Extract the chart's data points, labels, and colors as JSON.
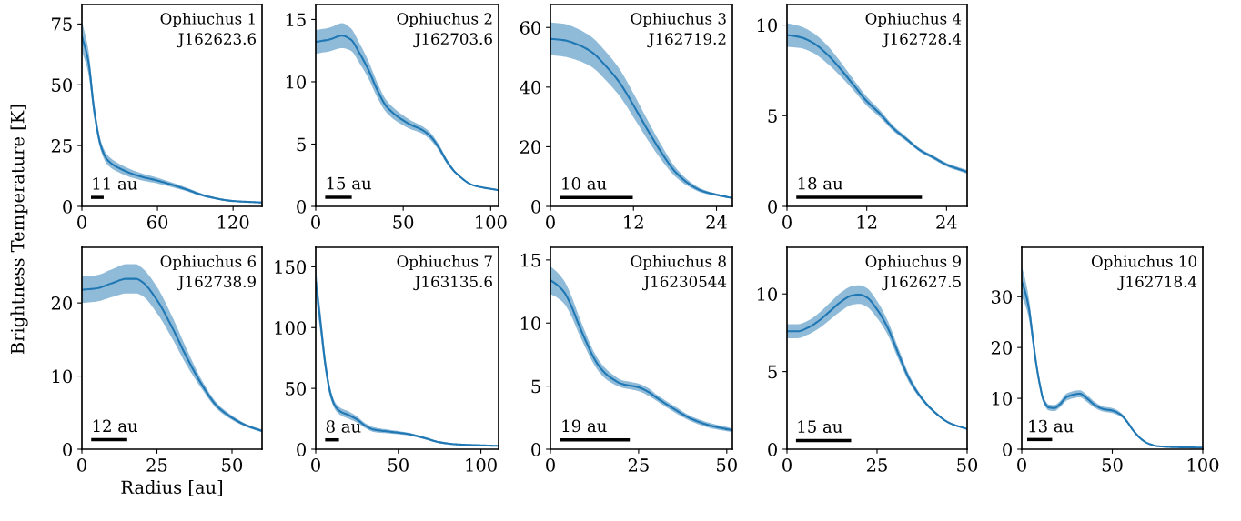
{
  "chart_data": [
    {
      "type": "line",
      "xlim": [
        0,
        143
      ],
      "ylim": [
        0,
        83
      ],
      "xticks": [
        0,
        60,
        120
      ],
      "yticks": [
        0,
        25,
        50,
        75
      ],
      "x": [
        0,
        5,
        10,
        15,
        20,
        30,
        45,
        60,
        80,
        100,
        120,
        143
      ],
      "series": [
        {
          "type": "line",
          "color": "#1f77b4",
          "values": [
            70,
            60,
            38.6,
            25,
            19.3,
            15.6,
            12.5,
            10.6,
            7.5,
            4,
            2.2,
            1.6
          ],
          "lower": [
            64,
            55,
            35.6,
            23,
            17.3,
            13.8,
            11,
            9.4,
            6.7,
            3.5,
            1.9,
            1.4
          ],
          "upper": [
            76,
            65,
            41.6,
            27,
            21.3,
            17.4,
            14,
            11.8,
            8.3,
            4.5,
            2.5,
            1.8
          ]
        },
        {
          "type": "line",
          "color": "#000000",
          "x": [
            7.2,
            17.3
          ],
          "values": [
            3.7,
            3.7
          ]
        }
      ],
      "annotations": [
        "Ophiuchus 1",
        "J162623.6",
        {
          "text": "11 au",
          "x": 7.4,
          "y": 5.5
        }
      ]
    },
    {
      "type": "line",
      "xlim": [
        0,
        104.5
      ],
      "ylim": [
        0,
        16.2
      ],
      "xticks": [
        0,
        50,
        100
      ],
      "yticks": [
        0,
        5,
        10,
        15
      ],
      "x": [
        0,
        8,
        15,
        20,
        25,
        30,
        35,
        40,
        45,
        50,
        55,
        60,
        65,
        70,
        75,
        80,
        90,
        104.5
      ],
      "series": [
        {
          "type": "line",
          "color": "#1f77b4",
          "values": [
            13.2,
            13.4,
            13.7,
            13.4,
            12.3,
            11.0,
            9.4,
            8.1,
            7.4,
            6.9,
            6.5,
            6.2,
            5.7,
            4.8,
            3.6,
            2.7,
            1.7,
            1.3
          ],
          "lower": [
            12.25,
            12.45,
            12.7,
            12.5,
            11.5,
            10.3,
            8.8,
            7.6,
            6.95,
            6.5,
            6.15,
            5.9,
            5.4,
            4.55,
            3.4,
            2.6,
            1.65,
            1.25
          ],
          "upper": [
            14.15,
            14.35,
            14.7,
            14.3,
            13.1,
            11.7,
            10.0,
            8.6,
            7.85,
            7.3,
            6.85,
            6.5,
            6.0,
            5.05,
            3.8,
            2.8,
            1.75,
            1.35
          ]
        },
        {
          "type": "line",
          "color": "#000000",
          "x": [
            5.4,
            20.6
          ],
          "values": [
            0.73,
            0.73
          ]
        }
      ],
      "annotations": [
        "Ophiuchus 2",
        "J162703.6",
        {
          "text": "15 au",
          "x": 5.5,
          "y": 1.1
        }
      ]
    },
    {
      "type": "line",
      "xlim": [
        0,
        26.3
      ],
      "ylim": [
        0,
        67.7
      ],
      "xticks": [
        0,
        12,
        24
      ],
      "yticks": [
        0,
        20,
        40,
        60
      ],
      "x": [
        0,
        2,
        4,
        6,
        8,
        10,
        12,
        14,
        16,
        18,
        20,
        22,
        24,
        26.3
      ],
      "series": [
        {
          "type": "line",
          "color": "#1f77b4",
          "values": [
            56.2,
            55.7,
            54.2,
            51.7,
            47.1,
            41.5,
            33.9,
            25.8,
            18.2,
            11.7,
            7.6,
            5.1,
            3.9,
            2.8
          ],
          "lower": [
            50.7,
            50.2,
            48.9,
            46.7,
            42.3,
            37.0,
            29.9,
            22.5,
            15.7,
            10.1,
            6.6,
            4.5,
            3.5,
            2.5
          ],
          "upper": [
            61.7,
            61.2,
            59.5,
            56.7,
            51.9,
            46.0,
            37.9,
            29.1,
            20.7,
            13.3,
            8.6,
            5.7,
            4.3,
            3.1
          ]
        },
        {
          "type": "line",
          "color": "#000000",
          "x": [
            1.4,
            11.9
          ],
          "values": [
            3.0,
            3.0
          ]
        }
      ],
      "annotations": [
        "Ophiuchus 3",
        "J162719.2",
        {
          "text": "10 au",
          "x": 1.45,
          "y": 4.5
        }
      ]
    },
    {
      "type": "line",
      "xlim": [
        0,
        27.1
      ],
      "ylim": [
        0,
        11.13
      ],
      "xticks": [
        0,
        12,
        24
      ],
      "yticks": [
        0,
        5,
        10
      ],
      "x": [
        0,
        2,
        4,
        6,
        8,
        10,
        12,
        14,
        16,
        18,
        20,
        22,
        24,
        27.1
      ],
      "series": [
        {
          "type": "line",
          "color": "#1f77b4",
          "values": [
            9.45,
            9.33,
            9.0,
            8.4,
            7.6,
            6.7,
            5.8,
            5.1,
            4.3,
            3.7,
            3.1,
            2.7,
            2.3,
            1.9
          ],
          "lower": [
            8.8,
            8.73,
            8.45,
            7.9,
            7.2,
            6.4,
            5.55,
            4.9,
            4.15,
            3.58,
            3.0,
            2.6,
            2.2,
            1.8
          ],
          "upper": [
            10.1,
            9.93,
            9.55,
            8.9,
            8.0,
            7.0,
            6.05,
            5.3,
            4.45,
            3.82,
            3.2,
            2.8,
            2.4,
            2.0
          ]
        },
        {
          "type": "line",
          "color": "#000000",
          "x": [
            1.4,
            20.3
          ],
          "values": [
            0.5,
            0.5
          ]
        }
      ],
      "annotations": [
        "Ophiuchus 4",
        "J162728.4",
        {
          "text": "18 au",
          "x": 1.45,
          "y": 0.75
        }
      ]
    },
    {
      "type": "line",
      "xlabel": "Radius [au]",
      "ylabel": "Brightness Temperature [K]",
      "xlim": [
        0,
        60
      ],
      "ylim": [
        0,
        27.6
      ],
      "xticks": [
        0,
        25,
        50
      ],
      "yticks": [
        0,
        10,
        20
      ],
      "x": [
        0,
        5,
        10,
        15,
        18,
        20,
        25,
        30,
        35,
        40,
        45,
        50,
        55,
        60
      ],
      "series": [
        {
          "type": "line",
          "color": "#1f77b4",
          "values": [
            21.8,
            22.0,
            22.7,
            23.3,
            23.3,
            22.9,
            20.4,
            16.7,
            12.5,
            8.8,
            5.9,
            4.3,
            3.2,
            2.5
          ],
          "lower": [
            20.0,
            20.2,
            20.8,
            21.3,
            21.3,
            21.0,
            18.6,
            15.2,
            11.4,
            8.2,
            5.5,
            4.0,
            3.0,
            2.3
          ],
          "upper": [
            23.6,
            23.8,
            24.6,
            25.3,
            25.3,
            24.8,
            22.2,
            18.2,
            13.6,
            9.4,
            6.3,
            4.6,
            3.4,
            2.7
          ]
        },
        {
          "type": "line",
          "color": "#000000",
          "x": [
            3.1,
            15.1
          ],
          "values": [
            1.3,
            1.3
          ]
        }
      ],
      "annotations": [
        "Ophiuchus 6",
        "J162738.9",
        {
          "text": "12 au",
          "x": 3.2,
          "y": 1.9
        }
      ]
    },
    {
      "type": "line",
      "xlim": [
        0,
        110.7
      ],
      "ylim": [
        0,
        166
      ],
      "xticks": [
        0,
        50,
        100
      ],
      "yticks": [
        0,
        50,
        100,
        150
      ],
      "x": [
        0,
        3,
        6,
        9,
        12,
        15,
        20,
        25,
        30,
        35,
        45,
        55,
        65,
        75,
        85,
        100,
        110.7
      ],
      "series": [
        {
          "type": "line",
          "color": "#1f77b4",
          "values": [
            138,
            103,
            68,
            45.5,
            35,
            31,
            28,
            24.4,
            19.4,
            16.2,
            14.4,
            12.7,
            9.5,
            5.7,
            4,
            3.2,
            2.7
          ],
          "lower": [
            126,
            94,
            62,
            41.5,
            32,
            28,
            25,
            21.9,
            17.4,
            14.2,
            12.9,
            11.5,
            8.5,
            4.9,
            3.4,
            2.7,
            2.2
          ],
          "upper": [
            150,
            112,
            74,
            49.5,
            38,
            34,
            31,
            26.9,
            21.4,
            18.2,
            15.9,
            13.9,
            10.5,
            6.5,
            4.6,
            3.7,
            3.2
          ]
        },
        {
          "type": "line",
          "color": "#000000",
          "x": [
            5.7,
            14.1
          ],
          "values": [
            7.7,
            7.7
          ]
        }
      ],
      "annotations": [
        "Ophiuchus 7",
        "J163135.6",
        {
          "text": "8 au",
          "x": 5.8,
          "y": 11
        }
      ]
    },
    {
      "type": "line",
      "xlim": [
        0,
        51.6
      ],
      "ylim": [
        0,
        16.0
      ],
      "xticks": [
        0,
        25,
        50
      ],
      "yticks": [
        0,
        5,
        10,
        15
      ],
      "x": [
        0,
        2,
        4,
        6,
        8,
        10,
        12,
        14,
        16,
        18,
        20,
        25,
        28,
        30,
        35,
        40,
        45,
        51.6
      ],
      "series": [
        {
          "type": "line",
          "color": "#1f77b4",
          "values": [
            13.4,
            13.0,
            12.4,
            11.3,
            9.9,
            8.6,
            7.4,
            6.5,
            5.9,
            5.5,
            5.2,
            4.9,
            4.5,
            4.1,
            3.2,
            2.4,
            1.9,
            1.5
          ],
          "lower": [
            12.3,
            12.0,
            11.5,
            10.5,
            9.2,
            8.0,
            6.9,
            6.05,
            5.5,
            5.15,
            4.9,
            4.6,
            4.2,
            3.85,
            2.95,
            2.2,
            1.7,
            1.35
          ],
          "upper": [
            14.5,
            14.0,
            13.3,
            12.1,
            10.6,
            9.2,
            7.9,
            6.95,
            6.3,
            5.85,
            5.5,
            5.2,
            4.8,
            4.35,
            3.45,
            2.6,
            2.1,
            1.65
          ]
        },
        {
          "type": "line",
          "color": "#000000",
          "x": [
            2.8,
            22.5
          ],
          "values": [
            0.74,
            0.74
          ]
        }
      ],
      "annotations": [
        "Ophiuchus 8",
        "J16230544",
        {
          "text": "19 au",
          "x": 2.9,
          "y": 1.1
        }
      ]
    },
    {
      "type": "line",
      "xlim": [
        0,
        50
      ],
      "ylim": [
        0,
        13.0
      ],
      "xticks": [
        0,
        25,
        50
      ],
      "yticks": [
        0,
        5,
        10
      ],
      "x": [
        0,
        3,
        6,
        9,
        12,
        15,
        18,
        20,
        22,
        25,
        28,
        31,
        34,
        37,
        40,
        45,
        50
      ],
      "series": [
        {
          "type": "line",
          "color": "#1f77b4",
          "values": [
            7.6,
            7.6,
            7.85,
            8.3,
            8.9,
            9.5,
            9.9,
            9.96,
            9.8,
            9.0,
            7.8,
            6.1,
            4.5,
            3.4,
            2.6,
            1.7,
            1.3
          ],
          "lower": [
            7.15,
            7.15,
            7.4,
            7.8,
            8.35,
            8.9,
            9.3,
            9.36,
            9.2,
            8.45,
            7.35,
            5.75,
            4.25,
            3.25,
            2.5,
            1.65,
            1.25
          ],
          "upper": [
            8.05,
            8.05,
            8.3,
            8.8,
            9.45,
            10.1,
            10.5,
            10.56,
            10.4,
            9.55,
            8.25,
            6.45,
            4.75,
            3.55,
            2.7,
            1.75,
            1.35
          ]
        },
        {
          "type": "line",
          "color": "#000000",
          "x": [
            2.5,
            17.8
          ],
          "values": [
            0.55,
            0.55
          ]
        }
      ],
      "annotations": [
        "Ophiuchus 9",
        "J162627.5",
        {
          "text": "15 au",
          "x": 2.6,
          "y": 0.85
        }
      ]
    },
    {
      "type": "line",
      "xlim": [
        0,
        100
      ],
      "ylim": [
        0,
        39.7
      ],
      "xticks": [
        0,
        50,
        100
      ],
      "yticks": [
        0,
        10,
        20,
        30
      ],
      "x": [
        0,
        2,
        4,
        6,
        8,
        10,
        12,
        15,
        18,
        21,
        25,
        32,
        36,
        40,
        45,
        50,
        55,
        58,
        62,
        66,
        70,
        75,
        85,
        100
      ],
      "series": [
        {
          "type": "line",
          "color": "#1f77b4",
          "values": [
            33,
            30.8,
            27.6,
            22.2,
            16.8,
            12.7,
            9.7,
            8.2,
            8.1,
            8.8,
            10.3,
            10.9,
            10,
            8.8,
            7.9,
            7.6,
            6.7,
            5.5,
            3.5,
            2.0,
            1.1,
            0.6,
            0.4,
            0.3
          ],
          "lower": [
            30,
            28.3,
            25.6,
            20.7,
            15.8,
            11.9,
            9.1,
            7.6,
            7.5,
            8.2,
            9.6,
            10.2,
            9.3,
            8.2,
            7.4,
            7.1,
            6.3,
            5.2,
            3.3,
            1.8,
            1.0,
            0.5,
            0.3,
            0.2
          ],
          "upper": [
            36,
            33.3,
            29.6,
            23.7,
            17.8,
            13.5,
            10.3,
            8.8,
            8.7,
            9.4,
            11.0,
            11.6,
            10.7,
            9.4,
            8.4,
            8.1,
            7.1,
            5.8,
            3.7,
            2.2,
            1.2,
            0.7,
            0.4,
            0.4
          ]
        },
        {
          "color": "#000000",
          "x": [
            3.0,
            16.8
          ],
          "values": [
            1.9,
            1.9
          ]
        }
      ],
      "annotations": [
        "Ophiuchus 10",
        "J162718.4",
        {
          "text": "13 au",
          "x": 3.1,
          "y": 2.7
        }
      ]
    }
  ]
}
